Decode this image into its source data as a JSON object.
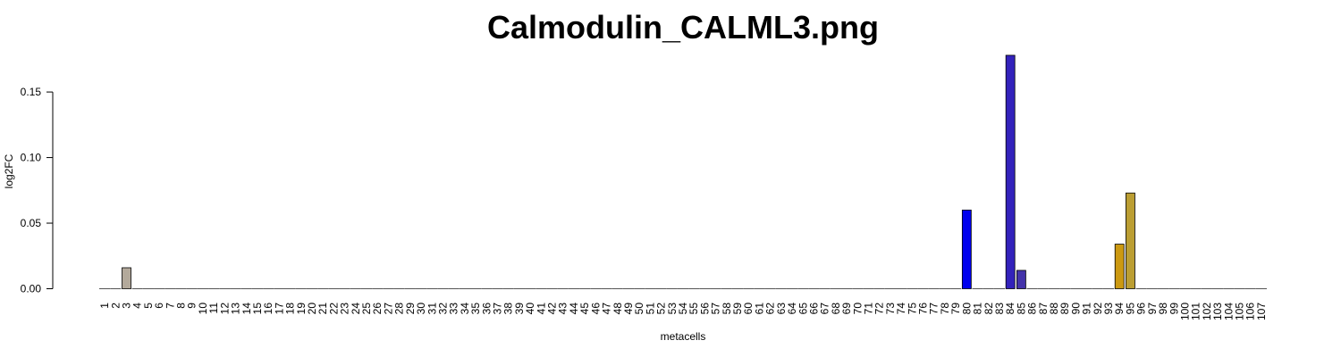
{
  "chart_data": {
    "type": "bar",
    "title": "Calmodulin_CALML3.png",
    "xlabel": "metacells",
    "ylabel": "log2FC",
    "ylim": [
      0,
      0.18
    ],
    "yticks": [
      0,
      0.05,
      0.1,
      0.15
    ],
    "ytick_labels": [
      "0.00",
      "0.05",
      "0.10",
      "0.15"
    ],
    "grid": false,
    "legend": "none",
    "categories": [
      "1",
      "2",
      "3",
      "4",
      "5",
      "6",
      "7",
      "8",
      "9",
      "10",
      "11",
      "12",
      "13",
      "14",
      "15",
      "16",
      "17",
      "18",
      "19",
      "20",
      "21",
      "22",
      "23",
      "24",
      "25",
      "26",
      "27",
      "28",
      "29",
      "30",
      "31",
      "32",
      "33",
      "34",
      "35",
      "36",
      "37",
      "38",
      "39",
      "40",
      "41",
      "42",
      "43",
      "44",
      "45",
      "46",
      "47",
      "48",
      "49",
      "50",
      "51",
      "52",
      "53",
      "54",
      "55",
      "56",
      "57",
      "58",
      "59",
      "60",
      "61",
      "62",
      "63",
      "64",
      "65",
      "66",
      "67",
      "68",
      "69",
      "70",
      "71",
      "72",
      "73",
      "74",
      "75",
      "76",
      "77",
      "78",
      "79",
      "80",
      "81",
      "82",
      "83",
      "84",
      "85",
      "86",
      "87",
      "88",
      "89",
      "90",
      "91",
      "92",
      "93",
      "94",
      "95",
      "96",
      "97",
      "98",
      "99",
      "100",
      "101",
      "102",
      "103",
      "104",
      "105",
      "106",
      "107"
    ],
    "values": [
      0,
      0,
      0.016,
      0,
      0,
      0,
      0,
      0,
      0,
      0,
      0,
      0,
      0,
      0,
      0,
      0,
      0,
      0,
      0,
      0,
      0,
      0,
      0,
      0,
      0,
      0,
      0,
      0,
      0,
      0,
      0,
      0,
      0,
      0,
      0,
      0,
      0,
      0,
      0,
      0,
      0,
      0,
      0,
      0,
      0,
      0,
      0,
      0,
      0,
      0,
      0,
      0,
      0,
      0,
      0,
      0,
      0,
      0,
      0,
      0,
      0,
      0,
      0,
      0,
      0,
      0,
      0,
      0,
      0,
      0,
      0,
      0,
      0,
      0,
      0,
      0,
      0,
      0,
      0,
      0.06,
      0,
      0,
      0,
      0.178,
      0.014,
      0,
      0,
      0,
      0,
      0,
      0,
      0,
      0,
      0.034,
      0.073,
      0,
      0,
      0,
      0,
      0,
      0,
      0,
      0,
      0,
      0,
      0,
      0
    ],
    "bar_colors": {
      "3": "#b3a99b",
      "80": "#0000ee",
      "84": "#3322bb",
      "85": "#4433aa",
      "94": "#cc9911",
      "95": "#bb9e33"
    },
    "default_color": "#999999"
  }
}
